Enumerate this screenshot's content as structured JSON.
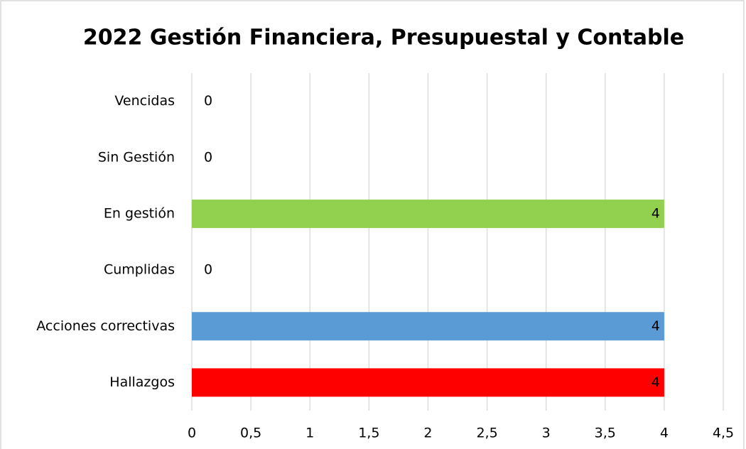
{
  "chart_data": {
    "type": "barh",
    "title": "2022 Gestión Financiera, Presupuestal y Contable",
    "categories": [
      "Hallazgos",
      "Acciones correctivas",
      "Cumplidas",
      "En gestión",
      "Sin Gestión",
      "Vencidas"
    ],
    "values": [
      4,
      4,
      0,
      4,
      0,
      0
    ],
    "colors": [
      "#ff0000",
      "#5b9bd5",
      null,
      "#92d050",
      null,
      null
    ],
    "xlim": [
      0,
      4.5
    ],
    "xticks": [
      0,
      {
        "value": 0.5,
        "label": "0,5"
      },
      1,
      {
        "value": 1.5,
        "label": "1,5"
      },
      2,
      {
        "value": 2.5,
        "label": "2,5"
      },
      3,
      {
        "value": 3.5,
        "label": "3,5"
      },
      4,
      {
        "value": 4.5,
        "label": "4,5"
      }
    ],
    "grid": true
  }
}
